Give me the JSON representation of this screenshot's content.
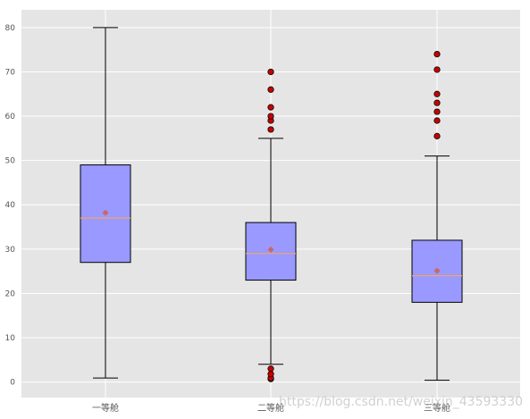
{
  "chart_data": {
    "type": "boxplot",
    "categories": [
      "一等舱",
      "二等舱",
      "三等舱"
    ],
    "ylim": [
      -3.5,
      84
    ],
    "y_ticks": [
      0,
      10,
      20,
      30,
      40,
      50,
      60,
      70,
      80
    ],
    "grid": true,
    "colors": {
      "plot_background": "#e5e5e5",
      "grid": "#ffffff",
      "box_fill": "#9999ff",
      "median": "#f4a460",
      "mean_marker": "#cc6666",
      "outlier_fill": "#cc0000",
      "outline": "#000000"
    },
    "boxes": [
      {
        "category": "一等舱",
        "whisker_low": 0.9,
        "q1": 27,
        "median": 37,
        "q3": 49,
        "whisker_high": 80,
        "mean": 38.2,
        "outliers": []
      },
      {
        "category": "二等舱",
        "whisker_low": 4,
        "q1": 23,
        "median": 29,
        "q3": 36,
        "whisker_high": 55,
        "mean": 29.9,
        "outliers": [
          0.7,
          0.9,
          1.8,
          3,
          57,
          59,
          60,
          62,
          66,
          70
        ]
      },
      {
        "category": "三等舱",
        "whisker_low": 0.4,
        "q1": 18,
        "median": 24,
        "q3": 32,
        "whisker_high": 51,
        "mean": 25.1,
        "outliers": [
          55.5,
          59,
          61,
          63,
          65,
          70.5,
          74
        ]
      }
    ]
  },
  "watermark": "https://blog.csdn.net/weixin_43593330"
}
